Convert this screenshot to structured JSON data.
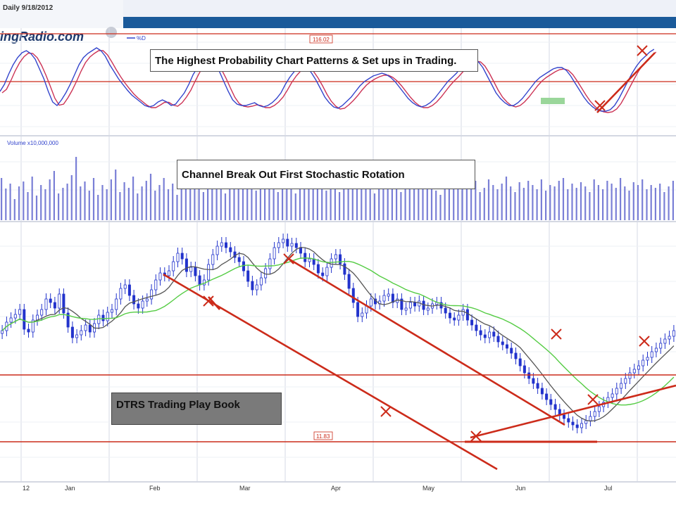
{
  "header": {
    "date_text": "Daily 9/18/2012",
    "logo_text": "ingRadio.com",
    "legend_k": "%D"
  },
  "oscillator": {
    "level_label": "116.02",
    "callout": "The Highest Probability Chart Patterns & Set ups in Trading."
  },
  "volume": {
    "label": "Volume x10,000,000",
    "callout": "Channel Break Out First Stochastic Rotation"
  },
  "price": {
    "support_label": "11.83",
    "play_book": "DTRS Trading Play Book"
  },
  "chart_data": {
    "type": "candlestick",
    "x_ticks": [
      "12",
      "Jan",
      "Feb",
      "Mar",
      "Apr",
      "May",
      "Jun",
      "Jul"
    ],
    "colors": {
      "candles": "#2233cc",
      "trendlines": "#cc2b1a",
      "ma_fast": "#555555",
      "ma_slow": "#55cc44",
      "stoch_k": "#3344cc",
      "stoch_d": "#cc3355",
      "grid": "#d4d8e4"
    },
    "price_close": [
      470,
      458,
      452,
      447,
      440,
      468,
      472,
      455,
      448,
      440,
      425,
      430,
      438,
      418,
      445,
      465,
      480,
      476,
      470,
      462,
      472,
      460,
      448,
      456,
      444,
      440,
      425,
      410,
      405,
      420,
      432,
      438,
      428,
      425,
      412,
      398,
      388,
      392,
      385,
      372,
      360,
      368,
      386,
      380,
      392,
      405,
      398,
      376,
      362,
      350,
      345,
      352,
      358,
      366,
      372,
      385,
      400,
      412,
      405,
      395,
      382,
      368,
      352,
      345,
      340,
      350,
      346,
      352,
      360,
      372,
      368,
      376,
      388,
      392,
      380,
      368,
      362,
      375,
      390,
      410,
      430,
      450,
      445,
      435,
      425,
      432,
      428,
      420,
      418,
      430,
      425,
      440,
      438,
      430,
      435,
      428,
      440,
      438,
      432,
      430,
      438,
      445,
      452,
      455,
      448,
      440,
      455,
      462,
      470,
      476,
      480,
      472,
      478,
      486,
      490,
      495,
      502,
      510,
      520,
      530,
      538,
      545,
      552,
      560,
      568,
      575,
      582,
      590,
      595,
      600,
      604,
      608,
      602,
      598,
      592,
      585,
      578,
      572,
      565,
      560,
      552,
      545,
      538,
      530,
      525,
      520,
      512,
      508,
      500,
      495,
      488,
      482,
      478,
      470
    ],
    "stoch_k": [
      130,
      120,
      105,
      92,
      82,
      75,
      72,
      76,
      84,
      98,
      112,
      130,
      145,
      150,
      142,
      132,
      120,
      106,
      92,
      82,
      76,
      72,
      68,
      72,
      80,
      92,
      102,
      112,
      120,
      128,
      135,
      140,
      145,
      150,
      152,
      150,
      145,
      142,
      145,
      150,
      148,
      140,
      132,
      120,
      106,
      96,
      88,
      84,
      86,
      92,
      102,
      116,
      130,
      142,
      148,
      150,
      150,
      148,
      146,
      150,
      152,
      150,
      146,
      140,
      132,
      120,
      110,
      102,
      96,
      92,
      96,
      104,
      114,
      126,
      138,
      146,
      152,
      154,
      150,
      144,
      138,
      130,
      122,
      116,
      112,
      108,
      106,
      104,
      106,
      110,
      116,
      124,
      132,
      140,
      146,
      150,
      152,
      150,
      146,
      140,
      132,
      124,
      116,
      110,
      104,
      96,
      90,
      86,
      84,
      88,
      96,
      108,
      120,
      132,
      140,
      146,
      150,
      150,
      146,
      140,
      132,
      124,
      116,
      110,
      106,
      102,
      98,
      96,
      96,
      100,
      108,
      118,
      128,
      138,
      146,
      152,
      156,
      158,
      158,
      156,
      150,
      140,
      128,
      116,
      104,
      94,
      86,
      80,
      74,
      70
    ],
    "volume_heights": [
      60,
      45,
      52,
      30,
      48,
      55,
      40,
      62,
      35,
      50,
      44,
      58,
      70,
      38,
      46,
      52,
      64,
      90,
      48,
      55,
      42,
      60,
      36,
      50,
      44,
      58,
      72,
      40,
      54,
      46,
      62,
      38,
      48,
      56,
      66,
      42,
      50,
      60,
      44,
      52,
      36,
      48,
      58,
      70,
      46,
      54,
      40,
      62,
      50,
      44,
      56,
      38,
      48,
      60,
      52,
      44,
      58,
      66,
      42,
      50,
      46,
      56,
      64,
      40,
      48,
      52,
      60,
      38,
      44,
      58,
      50,
      46,
      54,
      62,
      42,
      48,
      56,
      40,
      52,
      60,
      44,
      50,
      58,
      46,
      54,
      38,
      48,
      62,
      44,
      52,
      56,
      40,
      46,
      60,
      50,
      44,
      54,
      48,
      58,
      42,
      36,
      50,
      46,
      54,
      60,
      44,
      52,
      48,
      56,
      40,
      46,
      58,
      50,
      44,
      52,
      62,
      48,
      40,
      54,
      46,
      56,
      50,
      44,
      58,
      42,
      50,
      48,
      56,
      60,
      44,
      52,
      46,
      54,
      48,
      40,
      58,
      50,
      44,
      56,
      52,
      46,
      60,
      48,
      42,
      54,
      50,
      58,
      44,
      50,
      46,
      52,
      40,
      48,
      56
    ]
  }
}
